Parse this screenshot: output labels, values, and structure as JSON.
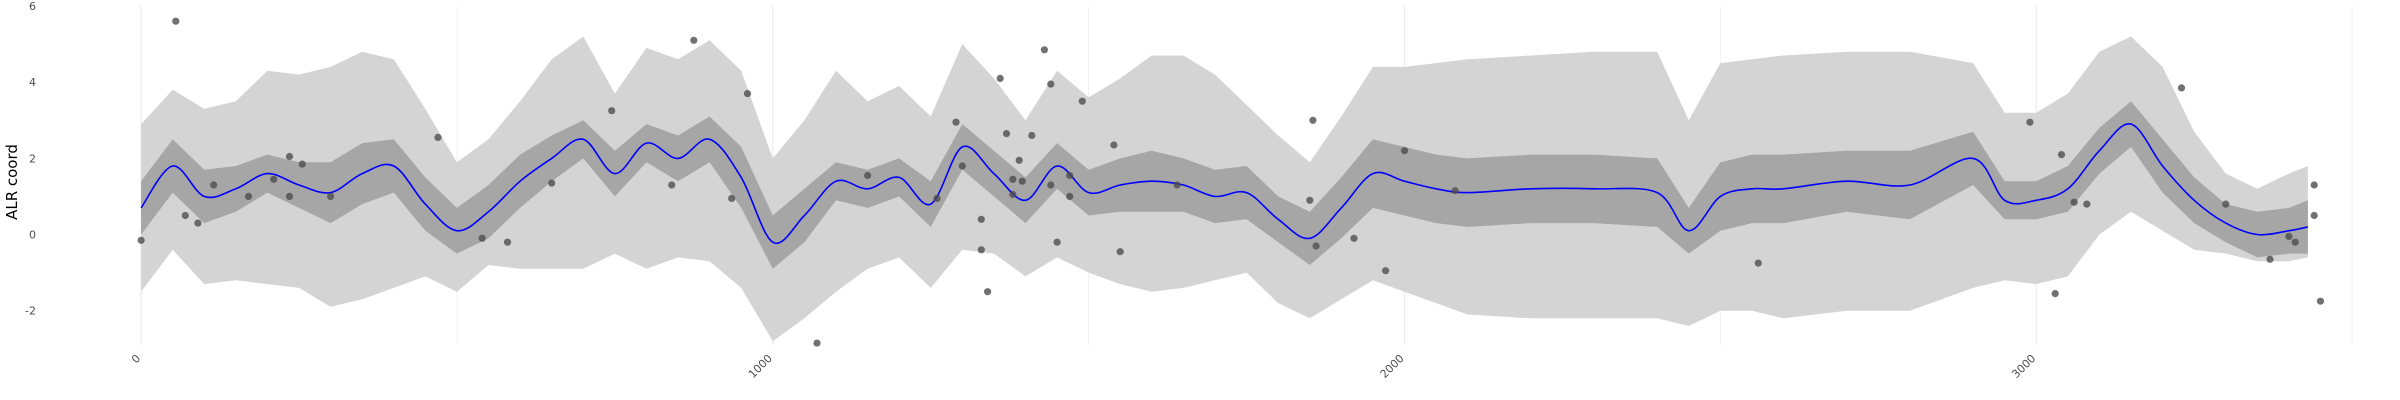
{
  "chart_data": {
    "type": "line",
    "title": "",
    "xlabel": "",
    "ylabel": "ALR coord",
    "xlim": [
      -160,
      3560
    ],
    "ylim": [
      -2.9,
      6.0
    ],
    "x_ticks": [
      0,
      1000,
      2000,
      3000
    ],
    "y_ticks": [
      -2,
      0,
      2,
      4,
      6
    ],
    "grid": true,
    "legend": "none",
    "colors": {
      "line": "#0000ff",
      "ribbon_inner": "#a6a6a6",
      "ribbon_outer": "#d4d4d4",
      "points": "#4d4d4d",
      "grid": "#ebebeb"
    },
    "series": [
      {
        "x": [
          0,
          50,
          100,
          150,
          200,
          250,
          300,
          350,
          400,
          450,
          500,
          550,
          600,
          650,
          700,
          750,
          800,
          850,
          900,
          950,
          1000,
          1050,
          1100,
          1150,
          1200,
          1250,
          1300,
          1350,
          1400,
          1450,
          1500,
          1550,
          1600,
          1650,
          1700,
          1750,
          1800,
          1850,
          1900,
          1950,
          2000,
          2050,
          2100,
          2200,
          2300,
          2400,
          2450,
          2500,
          2550,
          2600,
          2700,
          2800,
          2900,
          2950,
          3000,
          3050,
          3100,
          3150,
          3200,
          3250,
          3300,
          3350,
          3400,
          3430
        ],
        "mean": [
          0.7,
          1.8,
          1.0,
          1.2,
          1.6,
          1.3,
          1.1,
          1.6,
          1.8,
          0.8,
          0.1,
          0.6,
          1.4,
          2.0,
          2.5,
          1.6,
          2.4,
          2.0,
          2.5,
          1.5,
          -0.2,
          0.5,
          1.4,
          1.2,
          1.5,
          0.8,
          2.3,
          1.6,
          0.9,
          1.8,
          1.1,
          1.3,
          1.4,
          1.3,
          1.0,
          1.1,
          0.4,
          -0.1,
          0.7,
          1.6,
          1.4,
          1.2,
          1.1,
          1.2,
          1.2,
          1.1,
          0.1,
          1.0,
          1.2,
          1.2,
          1.4,
          1.3,
          2.0,
          0.9,
          0.9,
          1.2,
          2.2,
          2.9,
          1.8,
          0.9,
          0.3,
          0.0,
          0.1,
          0.2
        ],
        "inner_lo": [
          0.0,
          1.1,
          0.3,
          0.6,
          1.1,
          0.7,
          0.3,
          0.8,
          1.1,
          0.1,
          -0.5,
          -0.1,
          0.7,
          1.4,
          2.0,
          1.0,
          1.9,
          1.4,
          1.9,
          0.7,
          -0.9,
          -0.2,
          0.9,
          0.7,
          1.0,
          0.2,
          1.7,
          1.0,
          0.3,
          1.2,
          0.5,
          0.6,
          0.6,
          0.6,
          0.3,
          0.4,
          -0.2,
          -0.8,
          -0.1,
          0.7,
          0.5,
          0.3,
          0.2,
          0.3,
          0.3,
          0.2,
          -0.5,
          0.1,
          0.3,
          0.3,
          0.6,
          0.4,
          1.3,
          0.4,
          0.4,
          0.6,
          1.6,
          2.3,
          1.1,
          0.3,
          -0.2,
          -0.6,
          -0.5,
          -0.5
        ],
        "inner_hi": [
          1.4,
          2.5,
          1.7,
          1.8,
          2.1,
          1.9,
          1.9,
          2.4,
          2.5,
          1.5,
          0.7,
          1.3,
          2.1,
          2.6,
          3.0,
          2.2,
          2.9,
          2.6,
          3.1,
          2.3,
          0.5,
          1.2,
          1.9,
          1.7,
          2.0,
          1.4,
          2.9,
          2.2,
          1.5,
          2.4,
          1.7,
          2.0,
          2.2,
          2.0,
          1.7,
          1.8,
          1.0,
          0.6,
          1.5,
          2.5,
          2.3,
          2.1,
          2.0,
          2.1,
          2.1,
          2.0,
          0.7,
          1.9,
          2.1,
          2.1,
          2.2,
          2.2,
          2.7,
          1.4,
          1.4,
          1.8,
          2.8,
          3.5,
          2.5,
          1.5,
          0.8,
          0.6,
          0.7,
          0.9
        ],
        "outer_lo": [
          -1.5,
          -0.4,
          -1.3,
          -1.2,
          -1.3,
          -1.4,
          -1.9,
          -1.7,
          -1.4,
          -1.1,
          -1.5,
          -0.8,
          -0.9,
          -0.9,
          -0.9,
          -0.5,
          -0.9,
          -0.6,
          -0.7,
          -1.4,
          -2.8,
          -2.2,
          -1.5,
          -0.9,
          -0.6,
          -1.4,
          -0.4,
          -0.5,
          -1.1,
          -0.6,
          -1.0,
          -1.3,
          -1.5,
          -1.4,
          -1.2,
          -1.0,
          -1.8,
          -2.2,
          -1.7,
          -1.2,
          -1.5,
          -1.8,
          -2.1,
          -2.2,
          -2.2,
          -2.2,
          -2.4,
          -2.0,
          -2.0,
          -2.2,
          -2.0,
          -2.0,
          -1.4,
          -1.2,
          -1.3,
          -1.1,
          0.0,
          0.6,
          0.1,
          -0.4,
          -0.5,
          -0.7,
          -0.7,
          -0.6
        ],
        "outer_hi": [
          2.9,
          3.8,
          3.3,
          3.5,
          4.3,
          4.2,
          4.4,
          4.8,
          4.6,
          3.3,
          1.9,
          2.5,
          3.5,
          4.6,
          5.2,
          3.7,
          4.9,
          4.6,
          5.1,
          4.3,
          2.0,
          3.0,
          4.3,
          3.5,
          3.9,
          3.1,
          5.0,
          4.1,
          3.0,
          4.3,
          3.6,
          4.1,
          4.7,
          4.7,
          4.2,
          3.4,
          2.6,
          1.9,
          3.1,
          4.4,
          4.4,
          4.5,
          4.6,
          4.7,
          4.8,
          4.8,
          3.0,
          4.5,
          4.6,
          4.7,
          4.8,
          4.8,
          4.5,
          3.2,
          3.2,
          3.7,
          4.8,
          5.2,
          4.4,
          2.7,
          1.6,
          1.2,
          1.6,
          1.8
        ]
      }
    ],
    "points": [
      [
        0,
        -0.15
      ],
      [
        55,
        5.6
      ],
      [
        70,
        0.5
      ],
      [
        90,
        0.3
      ],
      [
        115,
        1.3
      ],
      [
        170,
        1.0
      ],
      [
        210,
        1.45
      ],
      [
        235,
        2.05
      ],
      [
        235,
        1.0
      ],
      [
        255,
        1.85
      ],
      [
        300,
        1.0
      ],
      [
        470,
        2.55
      ],
      [
        540,
        -0.1
      ],
      [
        580,
        -0.2
      ],
      [
        650,
        1.35
      ],
      [
        745,
        3.25
      ],
      [
        840,
        1.3
      ],
      [
        875,
        5.1
      ],
      [
        935,
        0.95
      ],
      [
        960,
        3.7
      ],
      [
        1070,
        -2.85
      ],
      [
        1150,
        1.55
      ],
      [
        1260,
        0.95
      ],
      [
        1290,
        2.95
      ],
      [
        1300,
        1.8
      ],
      [
        1330,
        0.4
      ],
      [
        1330,
        -0.4
      ],
      [
        1340,
        -1.5
      ],
      [
        1360,
        4.1
      ],
      [
        1370,
        2.65
      ],
      [
        1380,
        1.05
      ],
      [
        1380,
        1.45
      ],
      [
        1390,
        1.95
      ],
      [
        1395,
        1.4
      ],
      [
        1410,
        2.6
      ],
      [
        1430,
        4.85
      ],
      [
        1440,
        3.95
      ],
      [
        1440,
        1.3
      ],
      [
        1450,
        -0.2
      ],
      [
        1470,
        1.55
      ],
      [
        1470,
        1.0
      ],
      [
        1490,
        3.5
      ],
      [
        1540,
        2.35
      ],
      [
        1550,
        -0.45
      ],
      [
        1640,
        1.3
      ],
      [
        1850,
        0.9
      ],
      [
        1855,
        3.0
      ],
      [
        1860,
        -0.3
      ],
      [
        1920,
        -0.1
      ],
      [
        1970,
        -0.95
      ],
      [
        2000,
        2.2
      ],
      [
        2080,
        1.15
      ],
      [
        2560,
        -0.75
      ],
      [
        2990,
        2.95
      ],
      [
        3030,
        -1.55
      ],
      [
        3040,
        2.1
      ],
      [
        3060,
        0.85
      ],
      [
        3080,
        0.8
      ],
      [
        3230,
        3.85
      ],
      [
        3300,
        0.8
      ],
      [
        3370,
        -0.65
      ],
      [
        3400,
        -0.05
      ],
      [
        3410,
        -0.2
      ],
      [
        3440,
        0.5
      ],
      [
        3440,
        1.3
      ],
      [
        3450,
        -1.75
      ]
    ]
  }
}
